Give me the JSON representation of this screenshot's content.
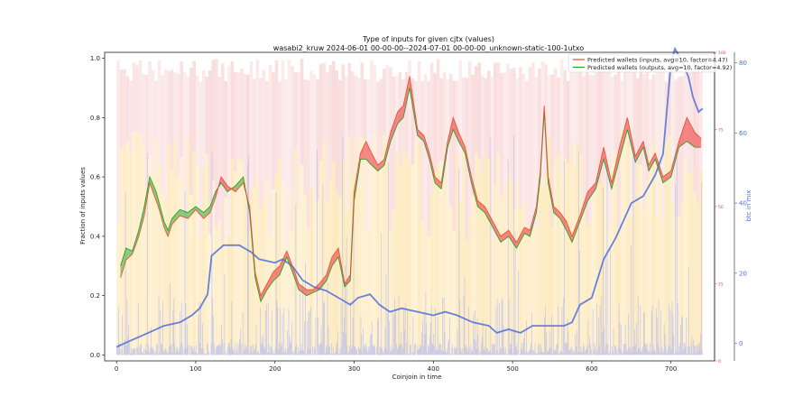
{
  "chart_data": {
    "type": "line",
    "title": "Type of inputs for given cjtx (values)",
    "subtitle": "wasabi2_kruw 2024-06-01 00-00-00--2024-07-01 00-00-00_unknown-static-100-1utxo",
    "xlabel": "Coinjoin in time",
    "ylabel": "Fraction of inputs values",
    "y2label": "btc in mix",
    "xlim": [
      -15,
      755
    ],
    "ylim": [
      -0.02,
      1.02
    ],
    "y2lim": [
      -5,
      83
    ],
    "y3lim": [
      0,
      100
    ],
    "x_ticks": [
      0,
      100,
      200,
      300,
      400,
      500,
      600,
      700
    ],
    "x_tick_labels": [
      "0",
      "100",
      "200",
      "300",
      "400",
      "500",
      "600",
      "700"
    ],
    "y_ticks": [
      0.0,
      0.2,
      0.4,
      0.6,
      0.8,
      1.0
    ],
    "y_tick_labels": [
      "0.0",
      "0.2",
      "0.4",
      "0.6",
      "0.8",
      "1.0"
    ],
    "y2_ticks": [
      0,
      20,
      40,
      60,
      80
    ],
    "y2_tick_labels": [
      "0",
      "20",
      "40",
      "60",
      "80"
    ],
    "y3_ticks": [
      0,
      25,
      50,
      75,
      100
    ],
    "y3_tick_labels": [
      "0",
      "25",
      "50",
      "75",
      "100"
    ],
    "legend_position": "top-right",
    "grid": false,
    "colors": {
      "inputs": "#e8492f",
      "outputs": "#2ca02c",
      "btc": "#4d6fd9",
      "fill_red": "#ee3333",
      "fill_green": "#33aa33",
      "bg_orange": "#fde8b8",
      "bg_red": "#f7cccc",
      "bar_blue": "#a9b4f5",
      "y3_axis": "#e8492f"
    },
    "background_bars": {
      "count": 740,
      "note_red_fraction_top": "upper band of each coinjoin tinted red/pink",
      "orange_to_red_split": [
        [
          0,
          0.62
        ],
        [
          100,
          0.55
        ],
        [
          200,
          0.5
        ],
        [
          300,
          0.6
        ],
        [
          400,
          0.55
        ],
        [
          500,
          0.55
        ],
        [
          600,
          0.6
        ],
        [
          740,
          0.6
        ]
      ]
    },
    "series": [
      {
        "name": "Predicted wallets (inputs, avg=10, factor=4.47)",
        "axis": "left",
        "x": [
          5,
          12,
          20,
          28,
          35,
          42,
          50,
          55,
          60,
          65,
          70,
          80,
          90,
          100,
          110,
          118,
          125,
          132,
          140,
          150,
          160,
          168,
          175,
          182,
          190,
          198,
          206,
          215,
          222,
          230,
          240,
          248,
          256,
          265,
          272,
          280,
          288,
          295,
          300,
          308,
          315,
          322,
          330,
          338,
          346,
          355,
          362,
          370,
          380,
          388,
          395,
          402,
          410,
          418,
          425,
          432,
          440,
          448,
          456,
          465,
          475,
          485,
          495,
          505,
          515,
          522,
          530,
          535,
          540,
          545,
          552,
          560,
          568,
          575,
          585,
          595,
          605,
          615,
          625,
          635,
          645,
          655,
          665,
          672,
          680,
          690,
          700,
          710,
          720,
          730,
          738
        ],
        "y": [
          0.26,
          0.32,
          0.34,
          0.4,
          0.47,
          0.58,
          0.52,
          0.48,
          0.43,
          0.4,
          0.44,
          0.47,
          0.46,
          0.49,
          0.46,
          0.48,
          0.53,
          0.6,
          0.57,
          0.55,
          0.58,
          0.5,
          0.28,
          0.2,
          0.24,
          0.28,
          0.3,
          0.35,
          0.3,
          0.24,
          0.22,
          0.22,
          0.24,
          0.27,
          0.33,
          0.36,
          0.24,
          0.27,
          0.55,
          0.68,
          0.72,
          0.68,
          0.64,
          0.66,
          0.75,
          0.82,
          0.84,
          0.94,
          0.76,
          0.74,
          0.68,
          0.6,
          0.58,
          0.72,
          0.8,
          0.75,
          0.7,
          0.6,
          0.52,
          0.5,
          0.45,
          0.4,
          0.42,
          0.38,
          0.43,
          0.42,
          0.5,
          0.62,
          0.84,
          0.6,
          0.5,
          0.48,
          0.45,
          0.4,
          0.47,
          0.55,
          0.58,
          0.7,
          0.58,
          0.7,
          0.8,
          0.67,
          0.72,
          0.64,
          0.68,
          0.6,
          0.62,
          0.72,
          0.8,
          0.75,
          0.73
        ]
      },
      {
        "name": "Predicted wallets (outputs, avg=10, factor=4.92)",
        "axis": "left",
        "x": [
          5,
          12,
          20,
          28,
          35,
          42,
          50,
          55,
          60,
          65,
          70,
          80,
          90,
          100,
          110,
          118,
          125,
          132,
          140,
          150,
          160,
          168,
          175,
          182,
          190,
          198,
          206,
          215,
          222,
          230,
          240,
          248,
          256,
          265,
          272,
          280,
          288,
          295,
          300,
          308,
          315,
          322,
          330,
          338,
          346,
          355,
          362,
          370,
          380,
          388,
          395,
          402,
          410,
          418,
          425,
          432,
          440,
          448,
          456,
          465,
          475,
          485,
          495,
          505,
          515,
          522,
          530,
          535,
          540,
          545,
          552,
          560,
          568,
          575,
          585,
          595,
          605,
          615,
          625,
          635,
          645,
          655,
          665,
          672,
          680,
          690,
          700,
          710,
          720,
          730,
          738
        ],
        "y": [
          0.3,
          0.36,
          0.35,
          0.42,
          0.5,
          0.6,
          0.55,
          0.5,
          0.45,
          0.42,
          0.46,
          0.49,
          0.48,
          0.5,
          0.48,
          0.5,
          0.55,
          0.58,
          0.55,
          0.57,
          0.6,
          0.48,
          0.26,
          0.18,
          0.22,
          0.25,
          0.27,
          0.33,
          0.28,
          0.22,
          0.2,
          0.21,
          0.22,
          0.25,
          0.3,
          0.33,
          0.23,
          0.25,
          0.52,
          0.66,
          0.66,
          0.64,
          0.62,
          0.64,
          0.72,
          0.78,
          0.8,
          0.9,
          0.74,
          0.72,
          0.66,
          0.58,
          0.56,
          0.7,
          0.76,
          0.72,
          0.68,
          0.58,
          0.5,
          0.48,
          0.43,
          0.38,
          0.4,
          0.36,
          0.41,
          0.4,
          0.48,
          0.6,
          0.82,
          0.58,
          0.48,
          0.46,
          0.42,
          0.38,
          0.45,
          0.52,
          0.56,
          0.66,
          0.56,
          0.66,
          0.76,
          0.65,
          0.7,
          0.62,
          0.66,
          0.58,
          0.6,
          0.7,
          0.72,
          0.7,
          0.7
        ]
      },
      {
        "name": "btc in mix",
        "axis": "right",
        "x": [
          0,
          10,
          20,
          40,
          60,
          80,
          95,
          105,
          115,
          120,
          135,
          155,
          170,
          180,
          200,
          210,
          222,
          235,
          250,
          265,
          280,
          295,
          305,
          320,
          332,
          345,
          360,
          380,
          400,
          415,
          430,
          450,
          470,
          480,
          495,
          510,
          525,
          540,
          555,
          565,
          575,
          585,
          600,
          615,
          630,
          650,
          665,
          680,
          690,
          700,
          705,
          715,
          722,
          728,
          735,
          740
        ],
        "y": [
          -1,
          0,
          1,
          3,
          5,
          6,
          8,
          10,
          14,
          25,
          28,
          28,
          26,
          24,
          23,
          24,
          22,
          18,
          16,
          15,
          13,
          11,
          13,
          14,
          11,
          9,
          10,
          9,
          8,
          9,
          8,
          6,
          5,
          3,
          4,
          3,
          5,
          5,
          5,
          5,
          6,
          11,
          13,
          24,
          30,
          40,
          42,
          48,
          54,
          80,
          84,
          80,
          76,
          70,
          66,
          67
        ]
      }
    ]
  }
}
